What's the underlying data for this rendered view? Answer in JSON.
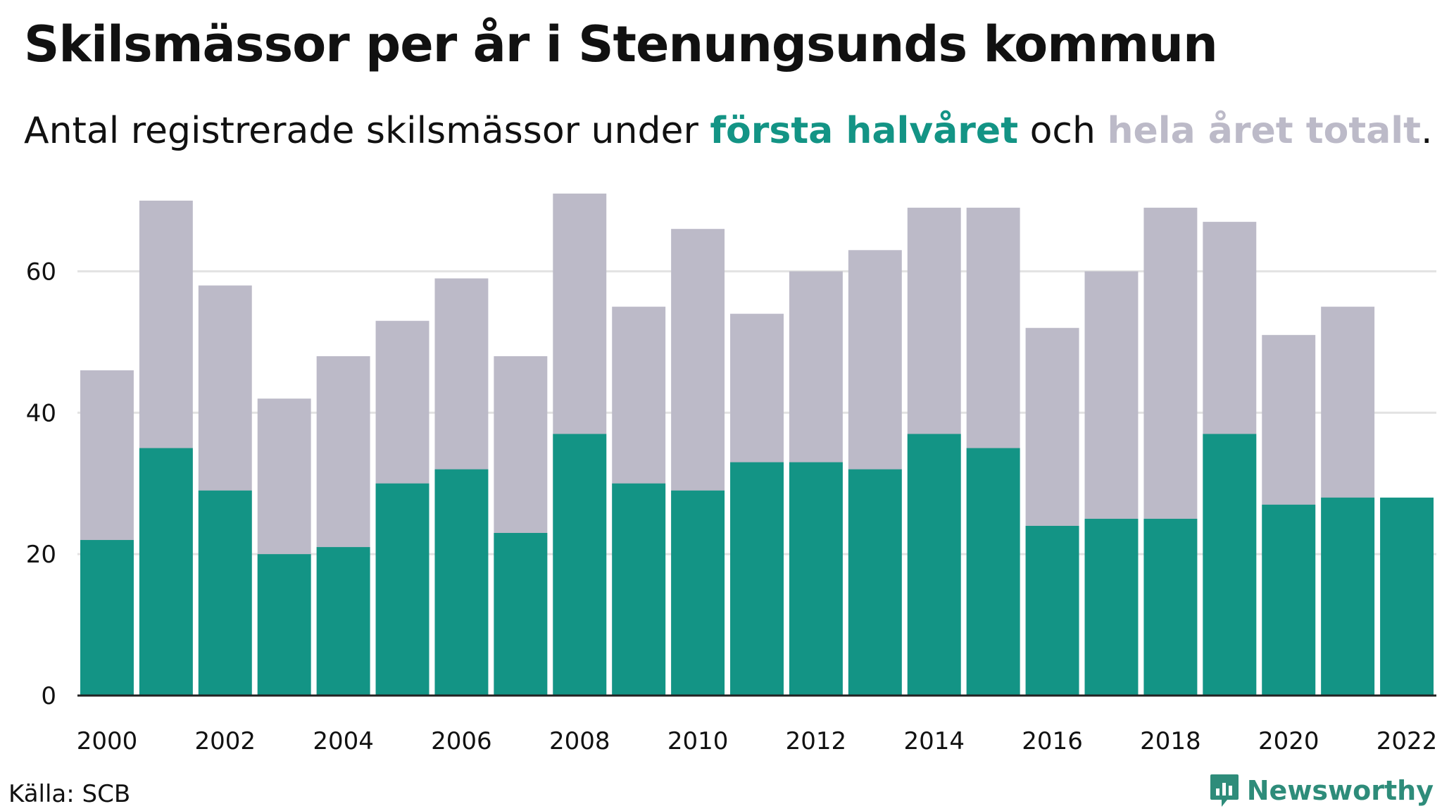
{
  "title": "Skilsmässor per år i Stenungsunds kommun",
  "subtitle": {
    "prefix": "Antal registrerade skilsmässor under ",
    "series_half": "första halvåret",
    "middle": " och ",
    "series_total": "hela året totalt",
    "suffix": "."
  },
  "source": "Källa: SCB",
  "brand": {
    "name": "Newsworthy",
    "icon": "newsworthy-logo-icon"
  },
  "colors": {
    "half": "#139485",
    "total": "#bcbac8",
    "grid": "#e2e2e2",
    "axis": "#222222",
    "text": "#111111"
  },
  "chart_data": {
    "type": "bar",
    "categories": [
      "2000",
      "2001",
      "2002",
      "2003",
      "2004",
      "2005",
      "2006",
      "2007",
      "2008",
      "2009",
      "2010",
      "2011",
      "2012",
      "2013",
      "2014",
      "2015",
      "2016",
      "2017",
      "2018",
      "2019",
      "2020",
      "2021",
      "2022"
    ],
    "x_tick_labels": [
      "2000",
      "2002",
      "2004",
      "2006",
      "2008",
      "2010",
      "2012",
      "2014",
      "2016",
      "2018",
      "2020",
      "2022"
    ],
    "y_ticks": [
      0,
      20,
      40,
      60
    ],
    "ylim": [
      0,
      70
    ],
    "grid": true,
    "legend": "none",
    "title": "Skilsmässor per år i Stenungsunds kommun",
    "series": [
      {
        "name": "hela året totalt",
        "values": [
          46,
          70,
          58,
          42,
          48,
          53,
          59,
          48,
          71,
          55,
          66,
          54,
          60,
          63,
          69,
          69,
          52,
          60,
          69,
          67,
          51,
          55,
          null
        ]
      },
      {
        "name": "första halvåret",
        "values": [
          22,
          35,
          29,
          20,
          21,
          30,
          32,
          23,
          37,
          30,
          29,
          33,
          33,
          32,
          37,
          35,
          24,
          25,
          25,
          37,
          27,
          28,
          28
        ]
      }
    ]
  }
}
